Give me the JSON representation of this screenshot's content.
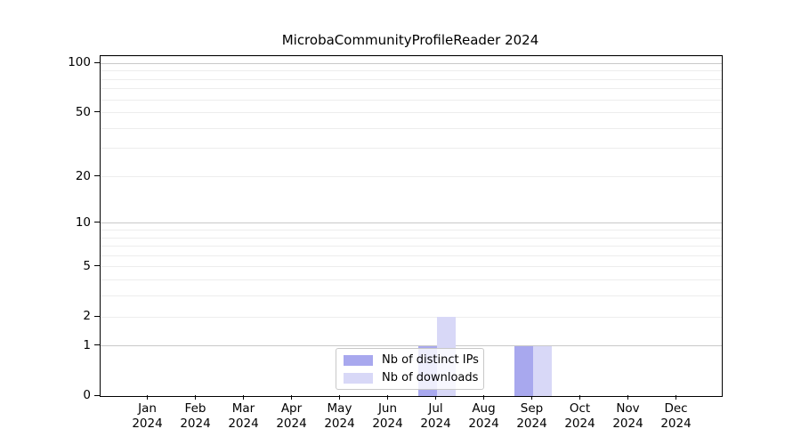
{
  "window": {
    "background": "#ffffff"
  },
  "chart_data": {
    "type": "bar",
    "title": "MicrobaCommunityProfileReader 2024",
    "year_label": "2024",
    "categories": [
      "Jan",
      "Feb",
      "Mar",
      "Apr",
      "May",
      "Jun",
      "Jul",
      "Aug",
      "Sep",
      "Oct",
      "Nov",
      "Dec"
    ],
    "series": [
      {
        "name": "Nb of distinct IPs",
        "color": "#a8a8ee",
        "values": [
          0,
          0,
          0,
          0,
          0,
          0,
          1,
          0,
          1,
          0,
          0,
          0
        ]
      },
      {
        "name": "Nb of downloads",
        "color": "#d8d8f7",
        "values": [
          0,
          0,
          0,
          0,
          0,
          0,
          2,
          0,
          1,
          0,
          0,
          0
        ]
      }
    ],
    "yscale": "log1p",
    "ylim": [
      0,
      111
    ],
    "ytick_labels": [
      0,
      1,
      2,
      5,
      10,
      20,
      50,
      100
    ],
    "gridlines": {
      "major": [
        1,
        10,
        100
      ],
      "minor": [
        2,
        3,
        4,
        5,
        6,
        7,
        8,
        9,
        20,
        30,
        40,
        50,
        60,
        70,
        80,
        90,
        110
      ],
      "major_color": "#c9c9c9",
      "minor_color": "#ededed"
    },
    "legend_position": "lower center",
    "xlabel": "",
    "ylabel": ""
  },
  "colors": {
    "axis": "#000000",
    "text": "#000000",
    "legend_border": "#c8c8c8"
  }
}
